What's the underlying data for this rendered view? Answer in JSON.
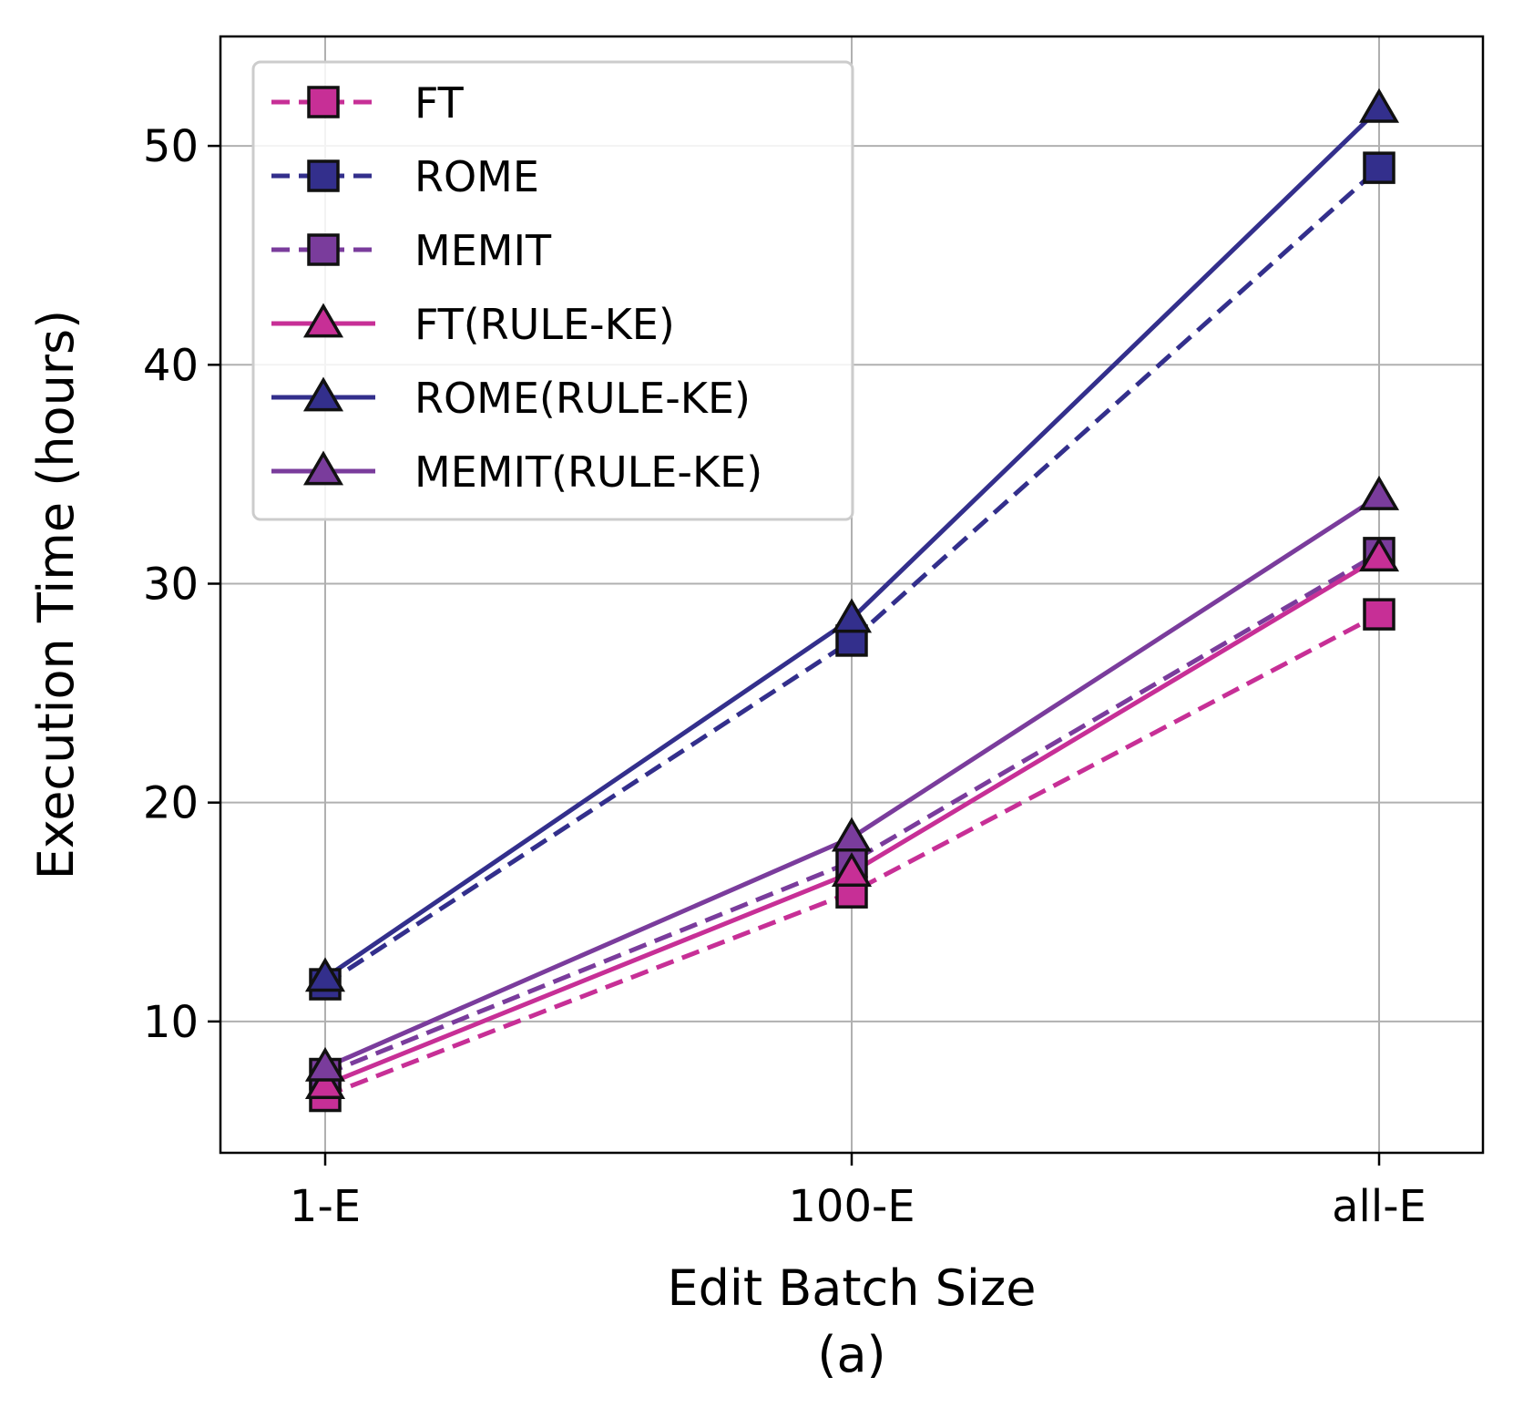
{
  "chart_data": {
    "type": "line",
    "title": "",
    "xlabel": "Edit Batch Size",
    "caption": "(a)",
    "ylabel": "Execution Time (hours)",
    "categories": [
      "1-E",
      "100-E",
      "all-E"
    ],
    "ylim": [
      4,
      55
    ],
    "yticks": [
      10,
      20,
      30,
      40,
      50
    ],
    "grid": true,
    "legend_position": "top-left",
    "series": [
      {
        "name": "FT",
        "values": [
          6.6,
          15.9,
          28.6
        ],
        "color": "#c72f96",
        "linestyle": "dashed",
        "marker": "square"
      },
      {
        "name": "ROME",
        "values": [
          11.7,
          27.4,
          49.0
        ],
        "color": "#332f8c",
        "linestyle": "dashed",
        "marker": "square"
      },
      {
        "name": "MEMIT",
        "values": [
          7.6,
          17.3,
          31.4
        ],
        "color": "#7a3c9c",
        "linestyle": "dashed",
        "marker": "square"
      },
      {
        "name": "FT(RULE-KE)",
        "values": [
          7.1,
          16.8,
          31.2
        ],
        "color": "#c72f96",
        "linestyle": "solid",
        "marker": "triangle"
      },
      {
        "name": "ROME(RULE-KE)",
        "values": [
          12.0,
          28.4,
          51.7
        ],
        "color": "#332f8c",
        "linestyle": "solid",
        "marker": "triangle"
      },
      {
        "name": "MEMIT(RULE-KE)",
        "values": [
          7.9,
          18.4,
          34.0
        ],
        "color": "#7a3c9c",
        "linestyle": "solid",
        "marker": "triangle"
      }
    ]
  }
}
